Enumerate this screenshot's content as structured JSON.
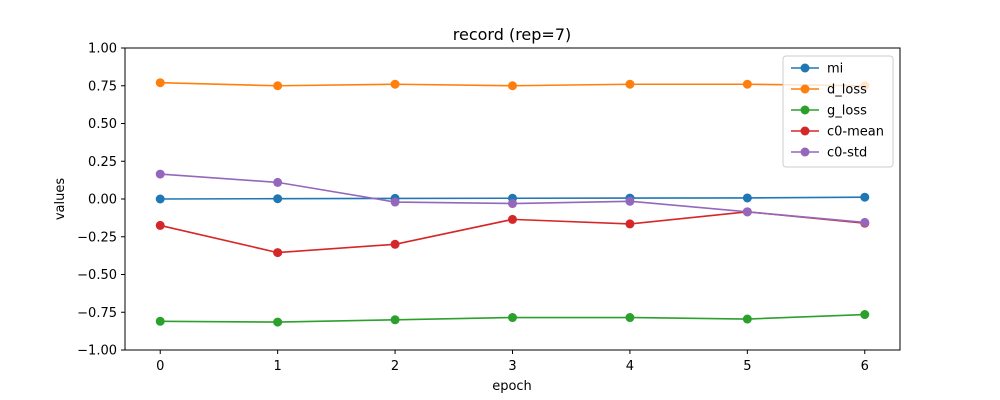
{
  "chart_data": {
    "type": "line",
    "title": "record (rep=7)",
    "xlabel": "epoch",
    "ylabel": "values",
    "x": [
      0,
      1,
      2,
      3,
      4,
      5,
      6
    ],
    "xlim": [
      -0.3,
      6.3
    ],
    "ylim": [
      -1.0,
      1.0
    ],
    "xticks": [
      "0",
      "1",
      "2",
      "3",
      "4",
      "5",
      "6"
    ],
    "yticks": [
      "−1.00",
      "−0.75",
      "−0.50",
      "−0.25",
      "0.00",
      "0.25",
      "0.50",
      "0.75",
      "1.00"
    ],
    "ytick_values": [
      -1.0,
      -0.75,
      -0.5,
      -0.25,
      0.0,
      0.25,
      0.5,
      0.75,
      1.0
    ],
    "grid": false,
    "legend_position": "top-right",
    "series": [
      {
        "name": "mi",
        "color": "#1f77b4",
        "values": [
          0.0,
          0.002,
          0.004,
          0.005,
          0.006,
          0.007,
          0.012
        ]
      },
      {
        "name": "d_loss",
        "color": "#ff7f0e",
        "values": [
          0.77,
          0.75,
          0.76,
          0.75,
          0.76,
          0.76,
          0.75
        ]
      },
      {
        "name": "g_loss",
        "color": "#2ca02c",
        "values": [
          -0.81,
          -0.815,
          -0.8,
          -0.785,
          -0.785,
          -0.795,
          -0.765
        ]
      },
      {
        "name": "c0-mean",
        "color": "#d62728",
        "values": [
          -0.175,
          -0.355,
          -0.3,
          -0.135,
          -0.165,
          -0.085,
          -0.16
        ]
      },
      {
        "name": "c0-std",
        "color": "#9467bd",
        "values": [
          0.165,
          0.11,
          -0.02,
          -0.03,
          -0.015,
          -0.085,
          -0.155
        ]
      }
    ]
  }
}
